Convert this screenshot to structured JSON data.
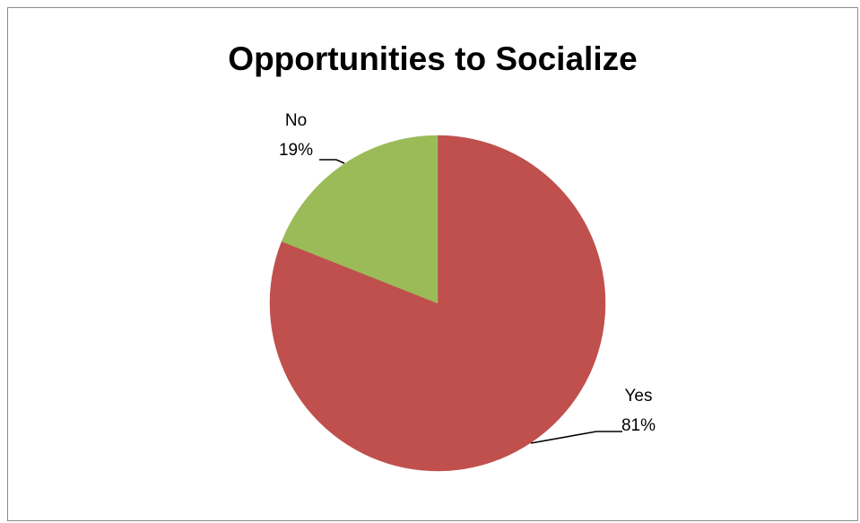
{
  "chart_data": {
    "type": "pie",
    "title": "Opportunities to Socialize",
    "categories": [
      "Yes",
      "No"
    ],
    "values": [
      81,
      19
    ],
    "value_labels": [
      "81%",
      "19%"
    ],
    "colors": [
      "#C0504D",
      "#9BBB59"
    ],
    "start_angle_deg": 0,
    "direction": "clockwise",
    "legend": "none",
    "labels_position": "outside-with-leader-lines"
  }
}
